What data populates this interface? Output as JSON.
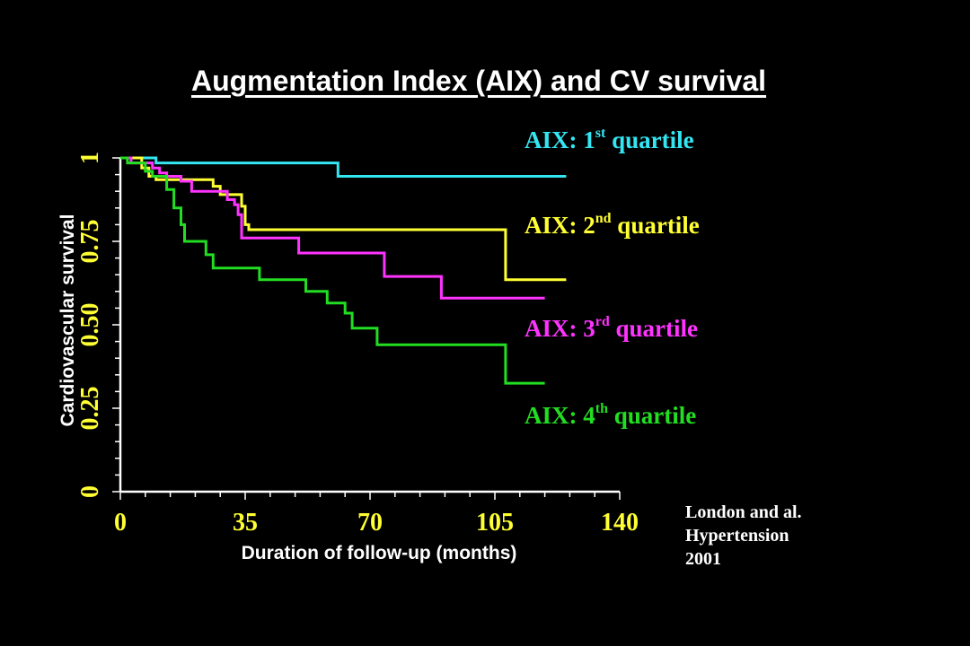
{
  "chart_data": {
    "type": "line",
    "title": "Augmentation Index (AIX) and CV survival",
    "xlabel": "Duration of follow-up (months)",
    "ylabel": "Cardiovascular survival",
    "xlim": [
      0,
      140
    ],
    "ylim": [
      0,
      1
    ],
    "x_ticks": [
      "0",
      "35",
      "70",
      "105",
      "140"
    ],
    "y_ticks": [
      "0",
      "0.25",
      "0.50",
      "0.75",
      "1"
    ],
    "grid": false,
    "legend_position": "right",
    "series": [
      {
        "name": "AIX: 1st quartile",
        "label_main": "AIX: 1",
        "label_sup": "st",
        "label_tail": " quartile",
        "color": "#33e6f2",
        "points": [
          [
            0,
            1.0
          ],
          [
            10,
            1.0
          ],
          [
            10,
            0.985
          ],
          [
            61,
            0.985
          ],
          [
            61,
            0.945
          ],
          [
            125,
            0.945
          ]
        ]
      },
      {
        "name": "AIX: 2nd quartile",
        "label_main": "AIX: 2",
        "label_sup": "nd",
        "label_tail": " quartile",
        "color": "#ffff33",
        "points": [
          [
            0,
            1.0
          ],
          [
            6,
            1.0
          ],
          [
            6,
            0.97
          ],
          [
            8,
            0.97
          ],
          [
            8,
            0.945
          ],
          [
            10,
            0.945
          ],
          [
            10,
            0.935
          ],
          [
            26,
            0.935
          ],
          [
            26,
            0.915
          ],
          [
            28,
            0.915
          ],
          [
            28,
            0.89
          ],
          [
            34,
            0.89
          ],
          [
            34,
            0.855
          ],
          [
            35,
            0.855
          ],
          [
            35,
            0.8
          ],
          [
            36,
            0.8
          ],
          [
            36,
            0.785
          ],
          [
            108,
            0.785
          ],
          [
            108,
            0.635
          ],
          [
            125,
            0.635
          ]
        ]
      },
      {
        "name": "AIX: 3rd quartile",
        "label_main": "AIX: 3",
        "label_sup": "rd",
        "label_tail": " quartile",
        "color": "#ff33ff",
        "points": [
          [
            0,
            1.0
          ],
          [
            3,
            1.0
          ],
          [
            3,
            0.985
          ],
          [
            9,
            0.985
          ],
          [
            9,
            0.97
          ],
          [
            11,
            0.97
          ],
          [
            11,
            0.955
          ],
          [
            13,
            0.955
          ],
          [
            13,
            0.945
          ],
          [
            17,
            0.945
          ],
          [
            17,
            0.93
          ],
          [
            20,
            0.93
          ],
          [
            20,
            0.9
          ],
          [
            30,
            0.9
          ],
          [
            30,
            0.875
          ],
          [
            32,
            0.875
          ],
          [
            32,
            0.86
          ],
          [
            33,
            0.86
          ],
          [
            33,
            0.83
          ],
          [
            34,
            0.83
          ],
          [
            34,
            0.76
          ],
          [
            50,
            0.76
          ],
          [
            50,
            0.715
          ],
          [
            74,
            0.715
          ],
          [
            74,
            0.645
          ],
          [
            90,
            0.645
          ],
          [
            90,
            0.58
          ],
          [
            119,
            0.58
          ]
        ]
      },
      {
        "name": "AIX: 4th quartile",
        "label_main": "AIX: 4",
        "label_sup": "th",
        "label_tail": " quartile",
        "color": "#22dd22",
        "points": [
          [
            0,
            1.0
          ],
          [
            2,
            1.0
          ],
          [
            2,
            0.985
          ],
          [
            7,
            0.985
          ],
          [
            7,
            0.96
          ],
          [
            9,
            0.96
          ],
          [
            9,
            0.945
          ],
          [
            13,
            0.945
          ],
          [
            13,
            0.905
          ],
          [
            15,
            0.905
          ],
          [
            15,
            0.85
          ],
          [
            17,
            0.85
          ],
          [
            17,
            0.8
          ],
          [
            18,
            0.8
          ],
          [
            18,
            0.75
          ],
          [
            24,
            0.75
          ],
          [
            24,
            0.71
          ],
          [
            26,
            0.71
          ],
          [
            26,
            0.67
          ],
          [
            39,
            0.67
          ],
          [
            39,
            0.635
          ],
          [
            52,
            0.635
          ],
          [
            52,
            0.6
          ],
          [
            58,
            0.6
          ],
          [
            58,
            0.565
          ],
          [
            63,
            0.565
          ],
          [
            63,
            0.535
          ],
          [
            65,
            0.535
          ],
          [
            65,
            0.49
          ],
          [
            72,
            0.49
          ],
          [
            72,
            0.44
          ],
          [
            108,
            0.44
          ],
          [
            108,
            0.325
          ],
          [
            119,
            0.325
          ]
        ]
      }
    ]
  },
  "citation": {
    "line1": "London and al.",
    "line2": "Hypertension",
    "line3": "2001"
  }
}
